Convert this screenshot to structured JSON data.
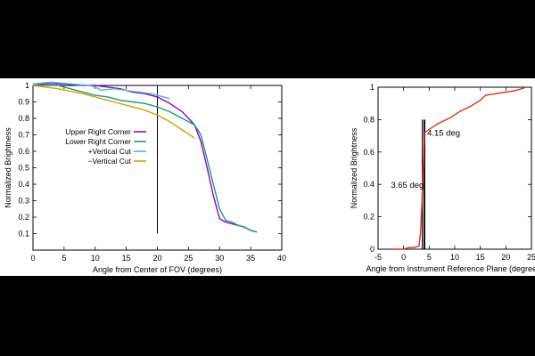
{
  "colors": {
    "background": "#000000",
    "panel": "#ffffff"
  },
  "chart_data": [
    {
      "type": "line",
      "title": "",
      "xlabel": "Angle from Center of FOV (degrees)",
      "ylabel": "Normalized Brightness",
      "xlim": [
        0,
        40
      ],
      "ylim": [
        0.0,
        1.0
      ],
      "xticks": [
        0,
        5,
        10,
        15,
        20,
        25,
        30,
        35,
        40
      ],
      "yticks": [
        0.1,
        0.2,
        0.3,
        0.4,
        0.5,
        0.6,
        0.7,
        0.8,
        0.9,
        1
      ],
      "grid": false,
      "legend_position": "middle-left",
      "reference_lines": [
        {
          "orientation": "horizontal",
          "value": 1.0
        },
        {
          "orientation": "vertical",
          "value": 20,
          "from": 0.1,
          "to": 1.0
        }
      ],
      "series": [
        {
          "name": "Upper Right Corner",
          "color": "#8a00d4",
          "x": [
            0,
            2,
            5,
            8,
            10,
            12,
            14,
            16,
            18,
            20,
            22,
            24,
            25,
            26,
            27,
            28,
            29,
            30,
            31,
            32,
            33,
            34,
            35,
            36
          ],
          "y": [
            1.0,
            1.01,
            1.01,
            1.0,
            1.0,
            0.99,
            0.98,
            0.96,
            0.95,
            0.93,
            0.89,
            0.84,
            0.8,
            0.76,
            0.66,
            0.5,
            0.33,
            0.19,
            0.17,
            0.16,
            0.15,
            0.14,
            0.12,
            0.11
          ]
        },
        {
          "name": "Lower Right Corner",
          "color": "#1e9a72",
          "x": [
            0,
            2,
            4,
            6,
            8,
            10,
            12,
            14,
            16,
            18,
            20,
            22,
            24,
            26,
            27,
            28,
            29,
            30,
            31,
            32,
            33,
            34,
            35,
            36
          ],
          "y": [
            1.0,
            1.0,
            1.0,
            0.98,
            0.96,
            0.94,
            0.93,
            0.91,
            0.9,
            0.89,
            0.87,
            0.84,
            0.8,
            0.76,
            0.7,
            0.55,
            0.4,
            0.25,
            0.18,
            0.17,
            0.15,
            0.14,
            0.12,
            0.11
          ]
        },
        {
          "name": "+Vertical Cut",
          "color": "#45b8e0",
          "x": [
            0,
            3,
            6,
            9,
            10,
            11,
            13,
            15,
            17,
            19,
            20,
            21,
            22
          ],
          "y": [
            1.01,
            1.02,
            1.01,
            1.0,
            0.99,
            0.97,
            0.98,
            0.97,
            0.96,
            0.95,
            0.94,
            0.93,
            0.92
          ]
        },
        {
          "name": "−Vertical Cut",
          "color": "#d6a000",
          "x": [
            0,
            4,
            8,
            10,
            12,
            14,
            16,
            18,
            20,
            22,
            24,
            26
          ],
          "y": [
            1.0,
            0.98,
            0.95,
            0.93,
            0.91,
            0.89,
            0.87,
            0.85,
            0.82,
            0.78,
            0.73,
            0.68
          ]
        }
      ]
    },
    {
      "type": "line",
      "title": "",
      "xlabel": "Angle from Instrument Reference Plane (degrees)",
      "ylabel": "Normalized Brightness",
      "xlim": [
        -5,
        25
      ],
      "ylim": [
        0,
        1
      ],
      "xticks": [
        -5,
        0,
        5,
        10,
        15,
        20,
        25
      ],
      "yticks": [
        0,
        0.2,
        0.4,
        0.6,
        0.8,
        1
      ],
      "grid": false,
      "annotations": [
        {
          "text": "4.15 deg",
          "x": 4.6,
          "y": 0.7
        },
        {
          "text": "3.65 deg",
          "x": -2.5,
          "y": 0.38
        }
      ],
      "reference_lines": [
        {
          "orientation": "vertical",
          "value": 3.65,
          "from": 0.0,
          "to": 0.8
        },
        {
          "orientation": "vertical",
          "value": 3.95,
          "from": 0.0,
          "to": 0.8
        },
        {
          "orientation": "vertical",
          "value": 4.15,
          "from": 0.0,
          "to": 0.8
        }
      ],
      "series": [
        {
          "name": "",
          "color": "#e0301e",
          "x": [
            -2,
            -1,
            0,
            1,
            2,
            3,
            3.3,
            3.6,
            3.8,
            4.0,
            4.1,
            4.15,
            5,
            7,
            9,
            11,
            13,
            15,
            16,
            18,
            20,
            22,
            24
          ],
          "y": [
            0.0,
            0.0,
            0.0,
            0.01,
            0.01,
            0.02,
            0.1,
            0.3,
            0.5,
            0.65,
            0.71,
            0.72,
            0.74,
            0.78,
            0.81,
            0.85,
            0.88,
            0.92,
            0.95,
            0.96,
            0.97,
            0.98,
            1.0
          ]
        }
      ]
    }
  ]
}
